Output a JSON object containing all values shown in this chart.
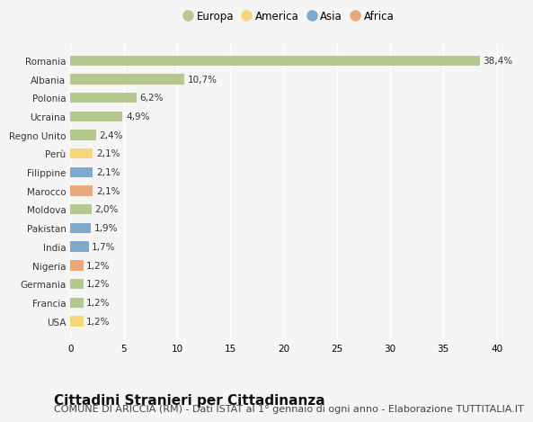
{
  "countries": [
    "Romania",
    "Albania",
    "Polonia",
    "Ucraina",
    "Regno Unito",
    "Perù",
    "Filippine",
    "Marocco",
    "Moldova",
    "Pakistan",
    "India",
    "Nigeria",
    "Germania",
    "Francia",
    "USA"
  ],
  "values": [
    38.4,
    10.7,
    6.2,
    4.9,
    2.4,
    2.1,
    2.1,
    2.1,
    2.0,
    1.9,
    1.7,
    1.2,
    1.2,
    1.2,
    1.2
  ],
  "labels": [
    "38,4%",
    "10,7%",
    "6,2%",
    "4,9%",
    "2,4%",
    "2,1%",
    "2,1%",
    "2,1%",
    "2,0%",
    "1,9%",
    "1,7%",
    "1,2%",
    "1,2%",
    "1,2%",
    "1,2%"
  ],
  "continents": [
    "Europa",
    "Europa",
    "Europa",
    "Europa",
    "Europa",
    "America",
    "Asia",
    "Africa",
    "Europa",
    "Asia",
    "Asia",
    "Africa",
    "Europa",
    "Europa",
    "America"
  ],
  "continent_colors": {
    "Europa": "#b5c98e",
    "America": "#f5d77a",
    "Asia": "#7ea8cc",
    "Africa": "#e8a87c"
  },
  "legend_order": [
    "Europa",
    "America",
    "Asia",
    "Africa"
  ],
  "xlim": [
    0,
    41
  ],
  "xticks": [
    0,
    5,
    10,
    15,
    20,
    25,
    30,
    35,
    40
  ],
  "title": "Cittadini Stranieri per Cittadinanza",
  "subtitle": "COMUNE DI ARICCIA (RM) - Dati ISTAT al 1° gennaio di ogni anno - Elaborazione TUTTITALIA.IT",
  "background_color": "#f5f5f5",
  "bar_height": 0.55,
  "title_fontsize": 11,
  "subtitle_fontsize": 8,
  "label_fontsize": 7.5,
  "tick_fontsize": 7.5,
  "legend_fontsize": 8.5
}
